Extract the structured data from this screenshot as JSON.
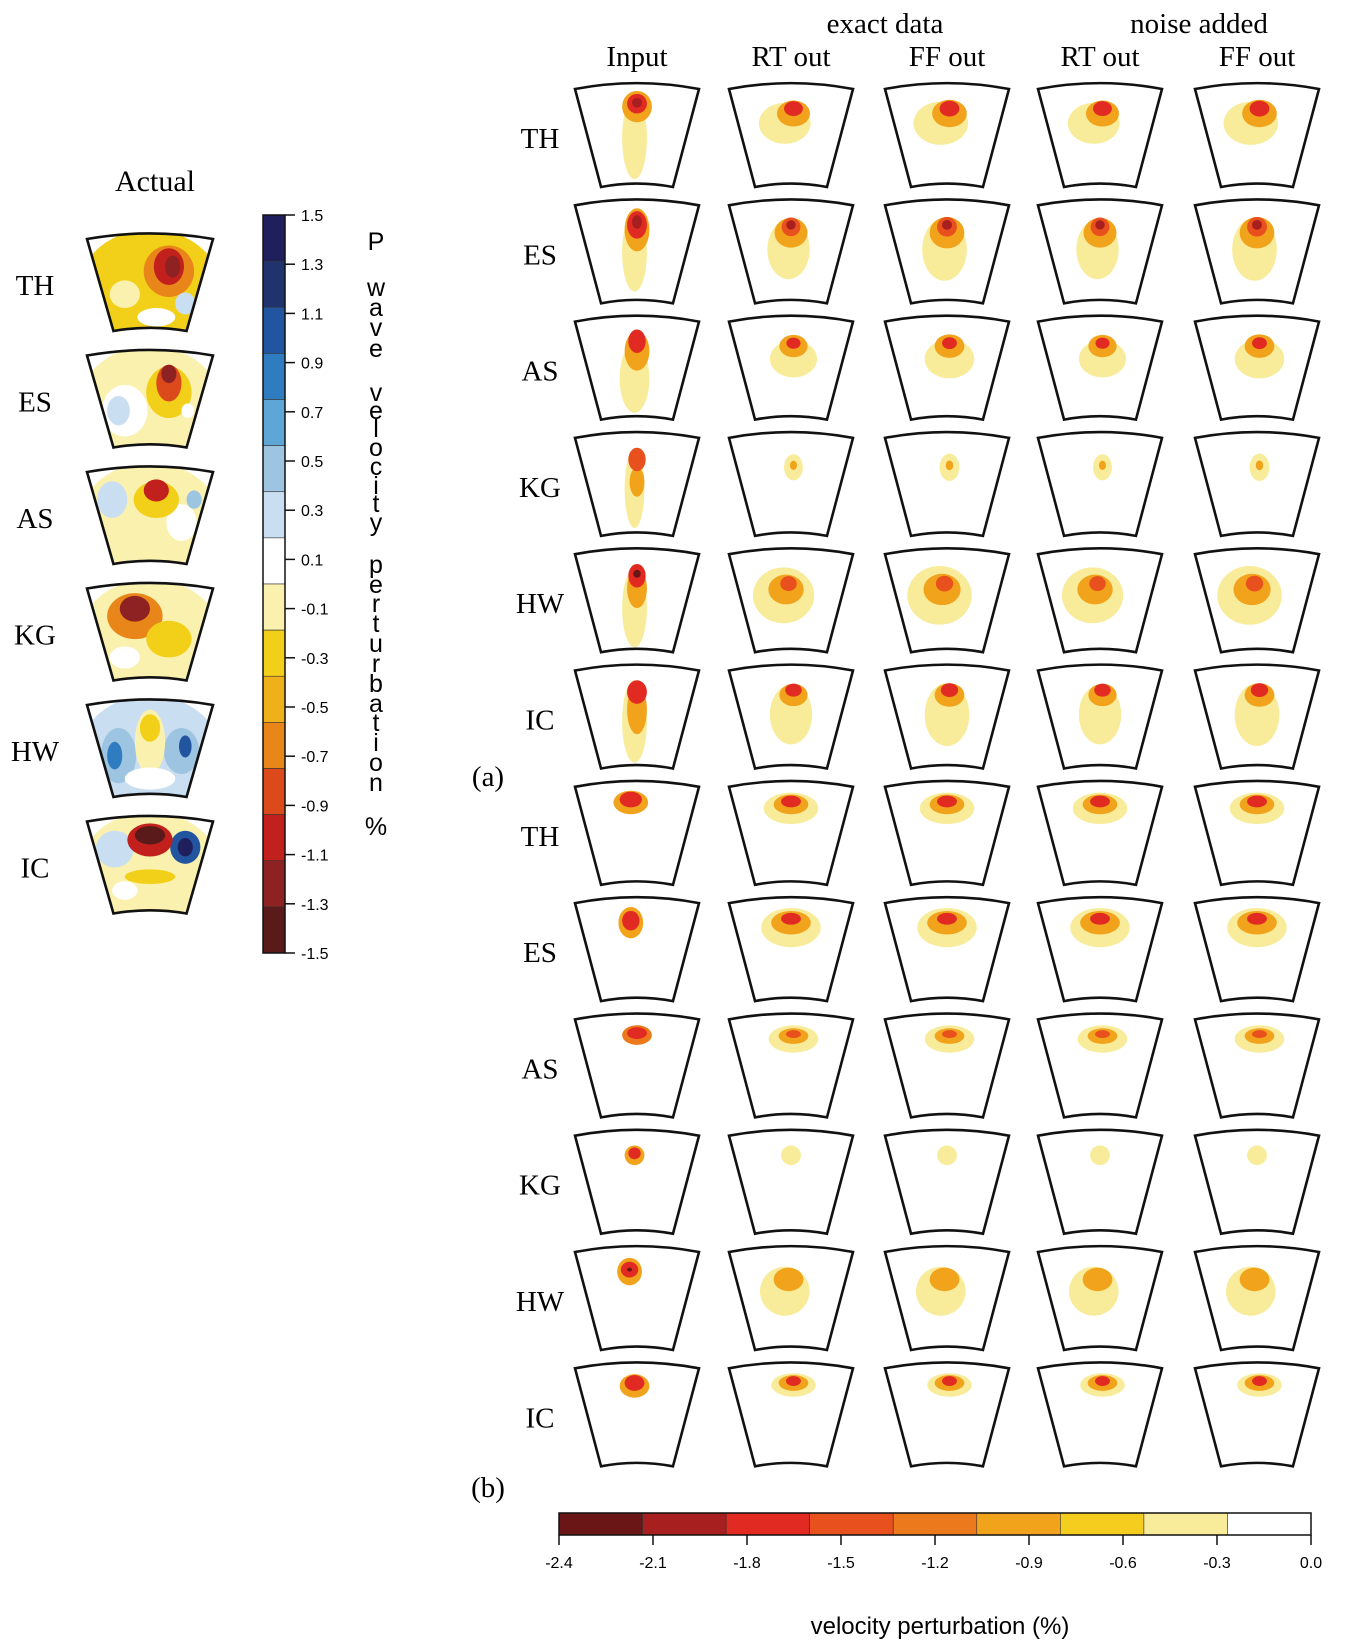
{
  "left_panel": {
    "title": "Actual",
    "rows": [
      "TH",
      "ES",
      "AS",
      "KG",
      "HW",
      "IC"
    ]
  },
  "vertical_colorbar": {
    "ticks": [
      "1.5",
      "1.3",
      "1.1",
      "0.9",
      "0.7",
      "0.5",
      "0.3",
      "0.1",
      "-0.1",
      "-0.3",
      "-0.5",
      "-0.7",
      "-0.9",
      "-1.1",
      "-1.3",
      "-1.5"
    ],
    "label_letters": [
      "P",
      "w",
      "a",
      "v",
      "e",
      "v",
      "e",
      "l",
      "o",
      "c",
      "i",
      "t",
      "y",
      "p",
      "e",
      "r",
      "t",
      "u",
      "r",
      "b",
      "a",
      "t",
      "i",
      "o",
      "n",
      "%"
    ],
    "colors": [
      "#1f1f5e",
      "#21336f",
      "#2255a0",
      "#2f7cc0",
      "#5ea6d6",
      "#9dc4e0",
      "#c9def0",
      "#ffffff",
      "#fbf1ae",
      "#f2d01a",
      "#efb119",
      "#e8861a",
      "#dc4a1b",
      "#c2201c",
      "#8e2222",
      "#5a1a1a"
    ]
  },
  "right_panel": {
    "group_headers": [
      "exact data",
      "noise added"
    ],
    "column_headers": [
      "Input",
      "RT out",
      "FF out",
      "RT out",
      "FF out"
    ],
    "rows": [
      "TH",
      "ES",
      "AS",
      "KG",
      "HW",
      "IC",
      "TH",
      "ES",
      "AS",
      "KG",
      "HW",
      "IC"
    ],
    "panel_labels": [
      "(a)",
      "(b)"
    ]
  },
  "horizontal_colorbar": {
    "ticks": [
      "-2.4",
      "-2.1",
      "-1.8",
      "-1.5",
      "-1.2",
      "-0.9",
      "-0.6",
      "-0.3",
      "0.0"
    ],
    "label": "velocity perturbation (%)",
    "colors": [
      "#6b1616",
      "#a81f1f",
      "#e02a22",
      "#e8501e",
      "#ec7a1c",
      "#f1a31c",
      "#f4cd1e",
      "#f8ec9a",
      "#ffffff"
    ]
  }
}
